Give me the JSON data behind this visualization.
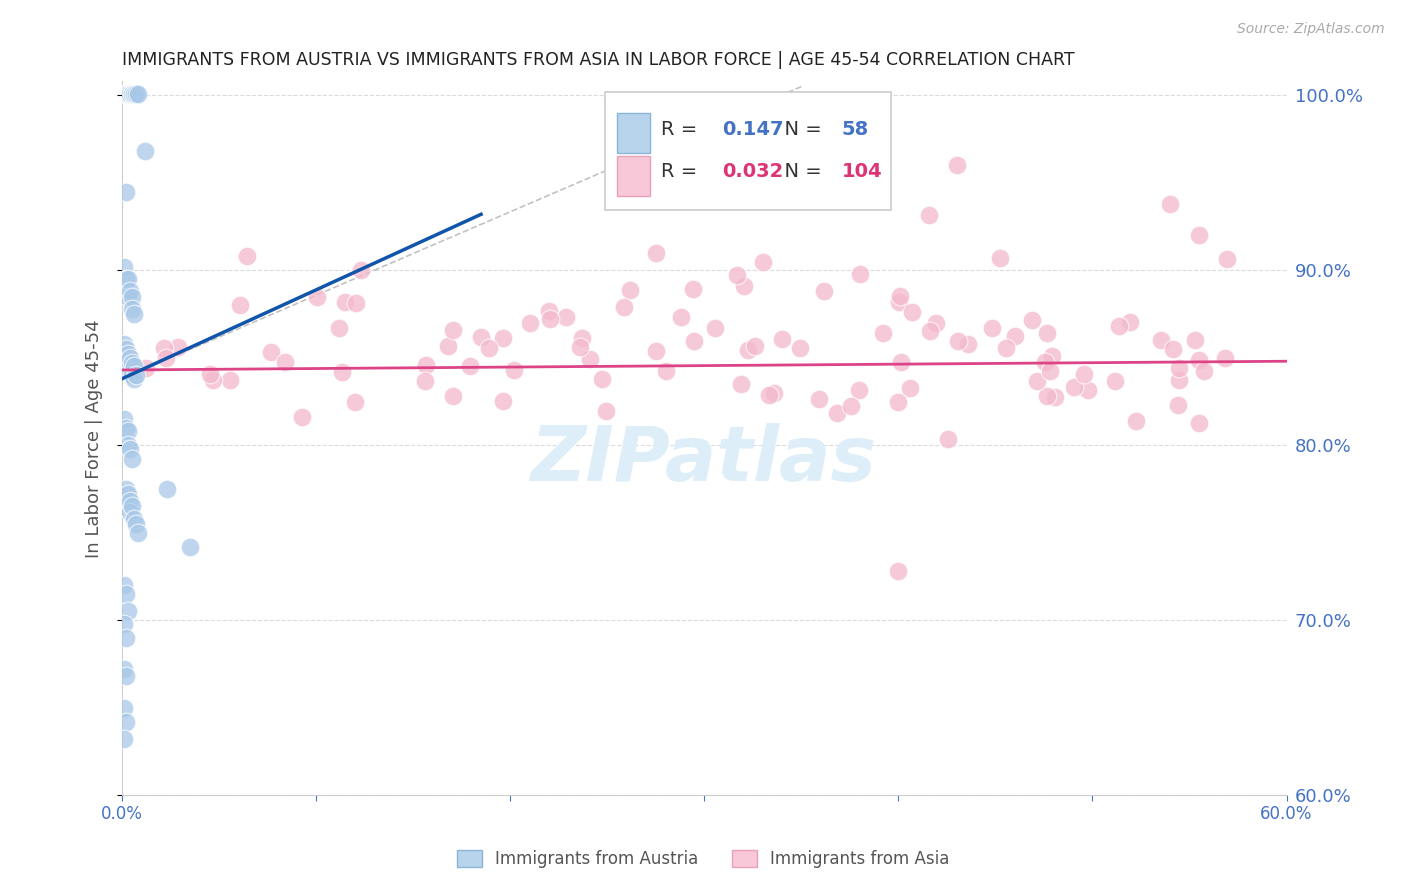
{
  "title": "IMMIGRANTS FROM AUSTRIA VS IMMIGRANTS FROM ASIA IN LABOR FORCE | AGE 45-54 CORRELATION CHART",
  "source": "Source: ZipAtlas.com",
  "ylabel": "In Labor Force | Age 45-54",
  "xlim": [
    0.0,
    0.6
  ],
  "ylim": [
    0.6,
    1.008
  ],
  "yticks": [
    0.6,
    0.7,
    0.8,
    0.9,
    1.0
  ],
  "xticks": [
    0.0,
    0.1,
    0.2,
    0.3,
    0.4,
    0.5,
    0.6
  ],
  "austria_R": 0.147,
  "austria_N": 58,
  "asia_R": 0.032,
  "asia_N": 104,
  "austria_color": "#a8c8e8",
  "asia_color": "#f4b8cc",
  "austria_line_color": "#1155aa",
  "asia_line_color": "#dd4488",
  "background_color": "#ffffff",
  "grid_color": "#cccccc",
  "title_color": "#222222",
  "axis_label_color": "#555555",
  "tick_color": "#4472c4",
  "watermark_color": "#ddeef8",
  "legend_box_color": "#cccccc",
  "austria_legend_sq": "#b8d4ec",
  "asia_legend_sq": "#f9c8d8",
  "R_color_austria": "#4472c4",
  "N_color_austria": "#4472c4",
  "R_color_asia": "#dd3377",
  "N_color_asia": "#dd3377"
}
